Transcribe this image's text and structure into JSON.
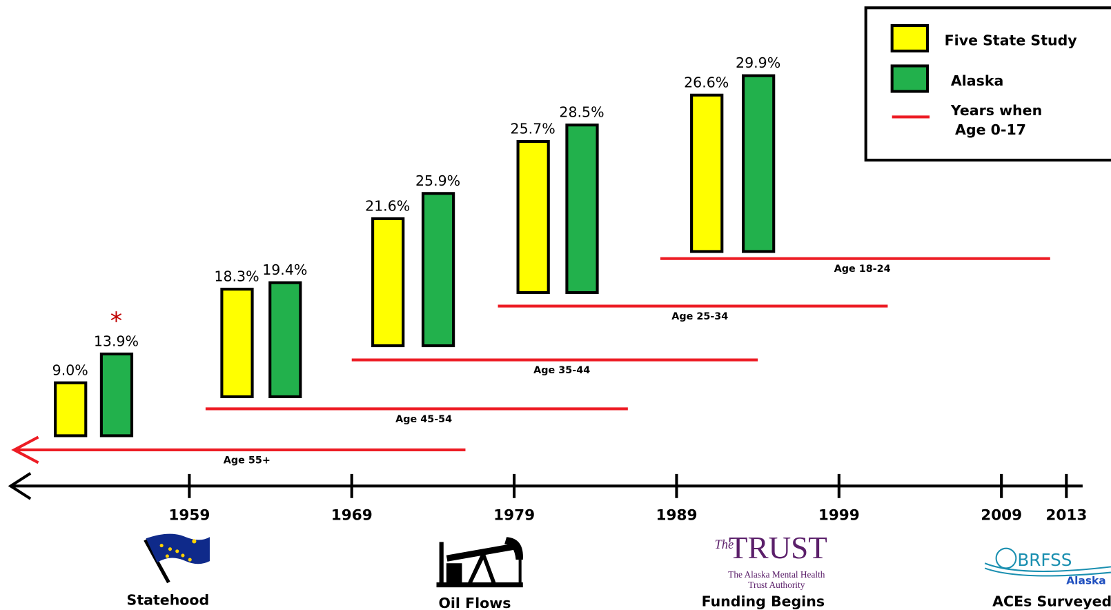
{
  "chart_data": {
    "type": "bar",
    "categories": [
      "Age 55+",
      "Age 45-54",
      "Age 35-44",
      "Age 25-34",
      "Age 18-24"
    ],
    "series": [
      {
        "name": "Five State Study",
        "color": "#ffff00",
        "values": [
          9.0,
          18.3,
          21.6,
          25.7,
          26.6
        ],
        "value_labels": [
          "9.0%",
          "18.3%",
          "21.6%",
          "25.7%",
          "26.6%"
        ]
      },
      {
        "name": "Alaska",
        "color": "#22b14c",
        "values": [
          13.9,
          19.4,
          25.9,
          28.5,
          29.9
        ],
        "value_labels": [
          "13.9%",
          "19.4%",
          "25.9%",
          "28.5%",
          "29.9%"
        ]
      }
    ],
    "annotation": "*",
    "span_legend": [
      "Years when",
      "Age 0-17"
    ],
    "span_color": "#ed1c24",
    "age_spans": [
      {
        "start": null,
        "end": 1976
      },
      {
        "start": 1960,
        "end": 1986
      },
      {
        "start": 1969,
        "end": 1994
      },
      {
        "start": 1978,
        "end": 2002
      },
      {
        "start": 1988,
        "end": 2012
      }
    ],
    "xlim": [
      1948,
      2014
    ],
    "xticks": [
      1959,
      1969,
      1979,
      1989,
      1999,
      2009,
      2013
    ],
    "events": [
      {
        "caption": "Statehood"
      },
      {
        "caption": "Oil Flows"
      },
      {
        "caption": "Funding Begins",
        "logo": [
          "The",
          "TRUST",
          "The Alaska Mental Health",
          "Trust Authority"
        ]
      },
      {
        "caption": "ACEs Surveyed",
        "logo": [
          "BRFSS",
          "Alaska"
        ]
      }
    ]
  }
}
